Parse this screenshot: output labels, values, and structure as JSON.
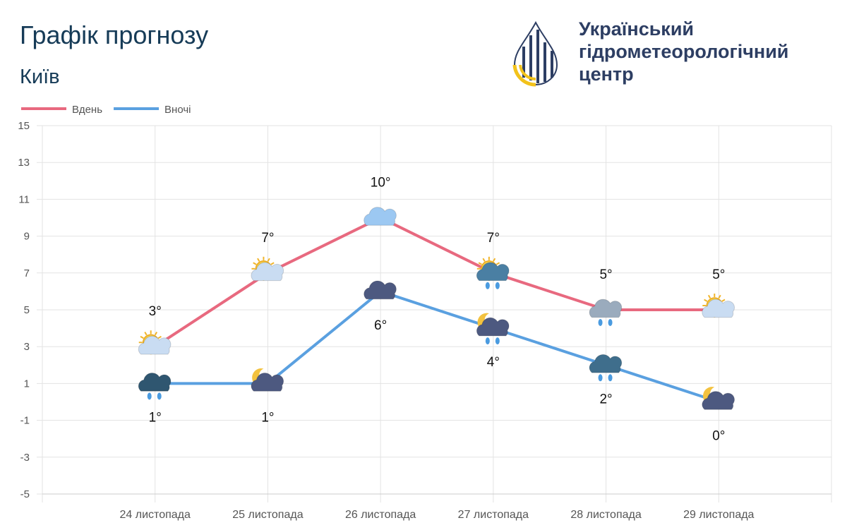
{
  "header": {
    "title": "Графік прогнозу",
    "city": "Київ",
    "logo_lines": [
      "Український",
      "гідрометеорологічний",
      "центр"
    ]
  },
  "chart_data": {
    "type": "line",
    "categories": [
      "24 листопада",
      "25 листопада",
      "26 листопада",
      "27 листопада",
      "28 листопада",
      "29 листопада"
    ],
    "series": [
      {
        "name": "Вдень",
        "color": "#e8697f",
        "values": [
          3,
          7,
          10,
          7,
          5,
          5
        ],
        "value_labels": [
          "3°",
          "7°",
          "10°",
          "7°",
          "5°",
          "5°"
        ]
      },
      {
        "name": "Вночі",
        "color": "#5aa0e0",
        "values": [
          1,
          1,
          6,
          4,
          2,
          0
        ],
        "value_labels": [
          "1°",
          "1°",
          "6°",
          "4°",
          "2°",
          "0°"
        ]
      }
    ],
    "ylim": [
      -5,
      15
    ],
    "yticks": [
      -5,
      -3,
      -1,
      1,
      3,
      5,
      7,
      9,
      11,
      13,
      15
    ],
    "grid": true,
    "legend": "top-left"
  }
}
